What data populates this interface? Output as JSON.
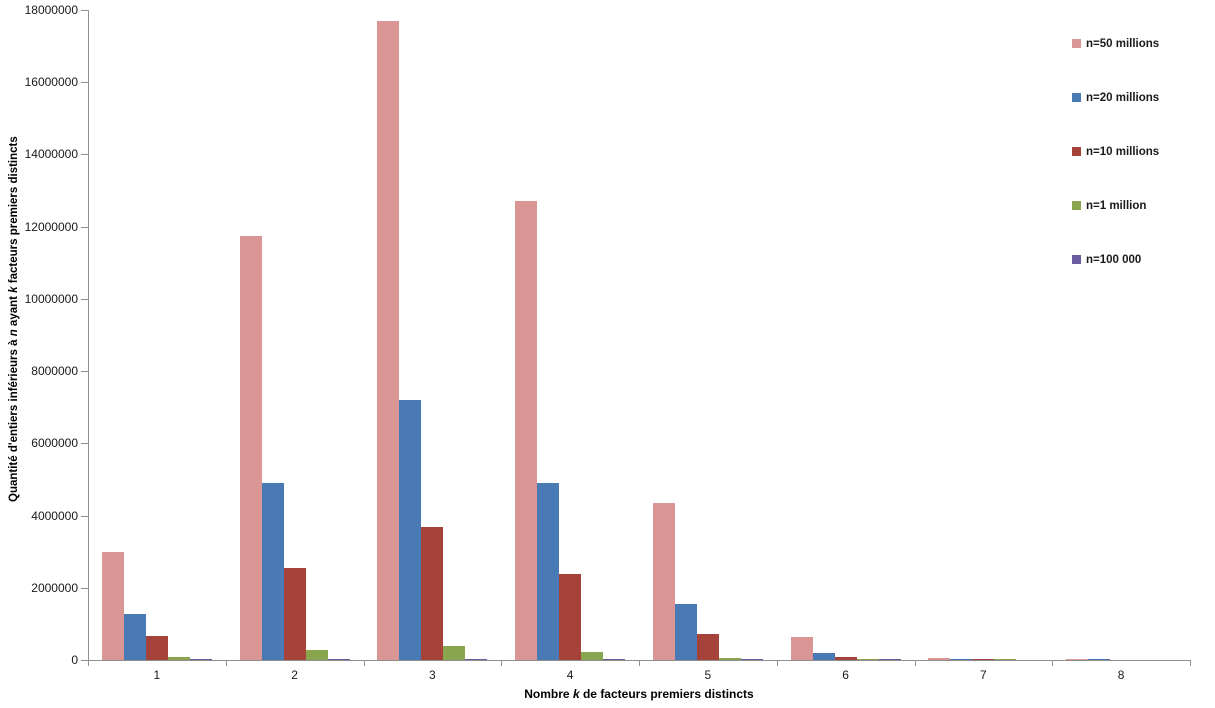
{
  "chart_data": {
    "type": "bar",
    "categories": [
      "1",
      "2",
      "3",
      "4",
      "5",
      "6",
      "7",
      "8"
    ],
    "series": [
      {
        "name": "n=50 millions",
        "color": "#D99694",
        "values": [
          3000000,
          11750000,
          17700000,
          12700000,
          4350000,
          630000,
          45000,
          15000
        ]
      },
      {
        "name": "n=20 millions",
        "color": "#4A7AB5",
        "values": [
          1280000,
          4900000,
          7200000,
          4900000,
          1550000,
          200000,
          15000,
          5000
        ]
      },
      {
        "name": "n=10 millions",
        "color": "#A5433B",
        "values": [
          665000,
          2540000,
          3680000,
          2390000,
          720000,
          90000,
          4000,
          0
        ]
      },
      {
        "name": "n=1 million",
        "color": "#89A54E",
        "values": [
          80000,
          290000,
          380000,
          210000,
          42000,
          2300,
          100,
          0
        ]
      },
      {
        "name": "n=100 000",
        "color": "#685C9E",
        "values": [
          9700,
          34000,
          39000,
          16000,
          1800,
          135,
          0,
          0
        ]
      }
    ],
    "ylim": [
      0,
      18000000
    ],
    "ytick_step": 2000000,
    "grid": false,
    "legend_position": "right",
    "xlabel_parts": {
      "pre": "Nombre ",
      "k": "k",
      "post": " de facteurs premiers distincts"
    },
    "ylabel_parts": {
      "pre": "Quantité d'entiers inférieurs à ",
      "n": "n",
      "mid": " ayant ",
      "k": "k",
      "post": " facteurs premiers distincts"
    },
    "axis_color": "#8e8e8e"
  }
}
